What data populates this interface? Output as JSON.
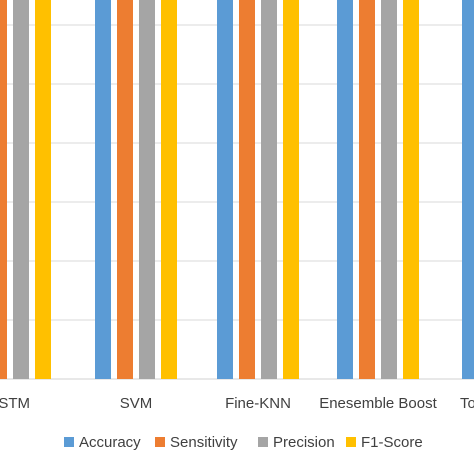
{
  "chart_data": {
    "type": "bar",
    "title": "",
    "xlabel": "",
    "ylabel": "",
    "categories": [
      "LSTM",
      "SVM",
      "Fine-KNN",
      "Enesemble Boost",
      "To"
    ],
    "category_labels_visible": [
      "STM",
      "SVM",
      "Fine-KNN",
      "Enesemble Boost",
      "To"
    ],
    "ylim": [
      0,
      1
    ],
    "grid": true,
    "legend_position": "bottom",
    "series": [
      {
        "name": "Accuracy",
        "color": "#5B9BD5",
        "values": [
          0.86,
          0.92,
          0.92,
          0.92,
          0.88
        ]
      },
      {
        "name": "Sensitivity",
        "color": "#ED7D31",
        "values": [
          0.88,
          0.94,
          0.94,
          0.94,
          null
        ]
      },
      {
        "name": "Precision",
        "color": "#A5A5A5",
        "values": [
          0.81,
          0.92,
          0.92,
          0.92,
          null
        ]
      },
      {
        "name": "F1-Score",
        "color": "#FFC000",
        "values": [
          0.88,
          0.93,
          0.93,
          0.93,
          null
        ]
      }
    ]
  }
}
